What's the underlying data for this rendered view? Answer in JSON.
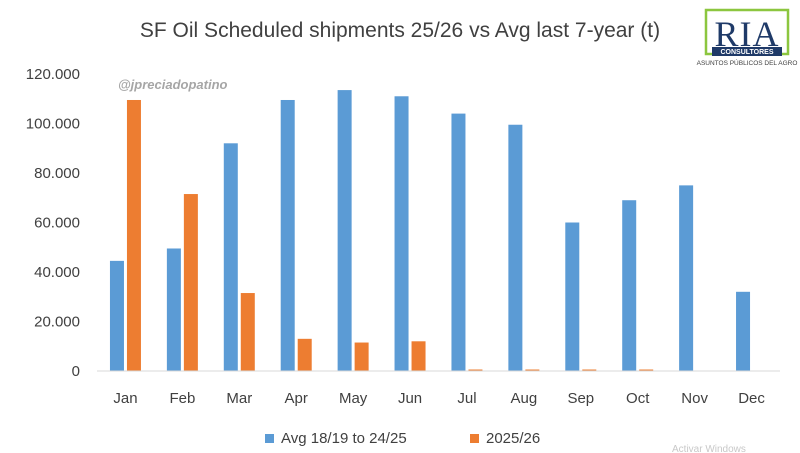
{
  "chart_data": {
    "type": "bar",
    "title": "SF Oil Scheduled shipments 25/26 vs Avg last 7-year (t)",
    "categories": [
      "Jan",
      "Feb",
      "Mar",
      "Apr",
      "May",
      "Jun",
      "Jul",
      "Aug",
      "Sep",
      "Oct",
      "Nov",
      "Dec"
    ],
    "series": [
      {
        "name": "Avg 18/19 to 24/25",
        "color": "#5b9bd5",
        "values": [
          44500,
          49500,
          92000,
          109500,
          113500,
          111000,
          104000,
          99500,
          60000,
          69000,
          75000,
          32000
        ]
      },
      {
        "name": "2025/26",
        "color": "#ed7d31",
        "values": [
          109500,
          71500,
          31500,
          13000,
          11500,
          12000,
          600,
          600,
          600,
          600,
          0,
          0
        ]
      }
    ],
    "ylim": [
      0,
      120000
    ],
    "yticks": [
      0,
      20000,
      40000,
      60000,
      80000,
      100000,
      120000
    ],
    "ytick_labels": [
      "0",
      "20.000",
      "40.000",
      "60.000",
      "80.000",
      "100.000",
      "120.000"
    ],
    "grid": false,
    "legend": "bottom"
  },
  "watermark": "@jpreciadopatino",
  "logo": {
    "name": "RIA",
    "tagline": "CONSULTORES",
    "subtitle": "ASUNTOS PÚBLICOS DEL AGRO",
    "frame_color": "#8cc63f",
    "text_color": "#1f3a68"
  },
  "overlay_text": "Activar Windows"
}
